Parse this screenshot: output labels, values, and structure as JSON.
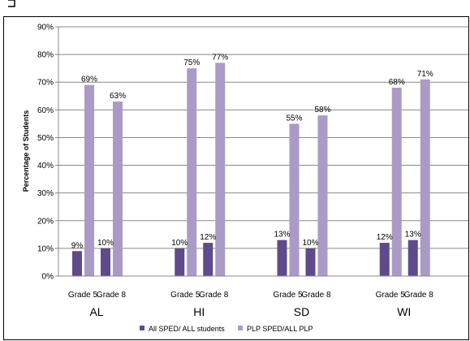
{
  "chart_data": {
    "type": "bar",
    "ylabel": "Percentage of Students",
    "ylim": [
      0,
      90
    ],
    "y_ticks": [
      "0%",
      "10%",
      "20%",
      "30%",
      "40%",
      "50%",
      "60%",
      "70%",
      "80%",
      "90%"
    ],
    "groups": [
      {
        "label": "AL",
        "categories": [
          "Grade 5",
          "Grade 8"
        ]
      },
      {
        "label": "HI",
        "categories": [
          "Grade 5",
          "Grade 8"
        ]
      },
      {
        "label": "SD",
        "categories": [
          "Grade 5",
          "Grade 8"
        ]
      },
      {
        "label": "WI",
        "categories": [
          "Grade 5",
          "Grade 8"
        ]
      }
    ],
    "series": [
      {
        "name": "All SPED/ ALL students",
        "color": "#5f4a8b",
        "values": [
          9,
          10,
          10,
          12,
          13,
          10,
          12,
          13
        ],
        "labels": [
          "9%",
          "10%",
          "10%",
          "12%",
          "13%",
          "10%",
          "12%",
          "13%"
        ]
      },
      {
        "name": "PLP SPED/ALL PLP",
        "color": "#a99bc6",
        "values": [
          69,
          63,
          75,
          77,
          55,
          58,
          68,
          71
        ],
        "labels": [
          "69%",
          "63%",
          "75%",
          "77%",
          "55%",
          "58%",
          "68%",
          "71%"
        ]
      }
    ],
    "grid": true,
    "legend_position": "bottom"
  }
}
